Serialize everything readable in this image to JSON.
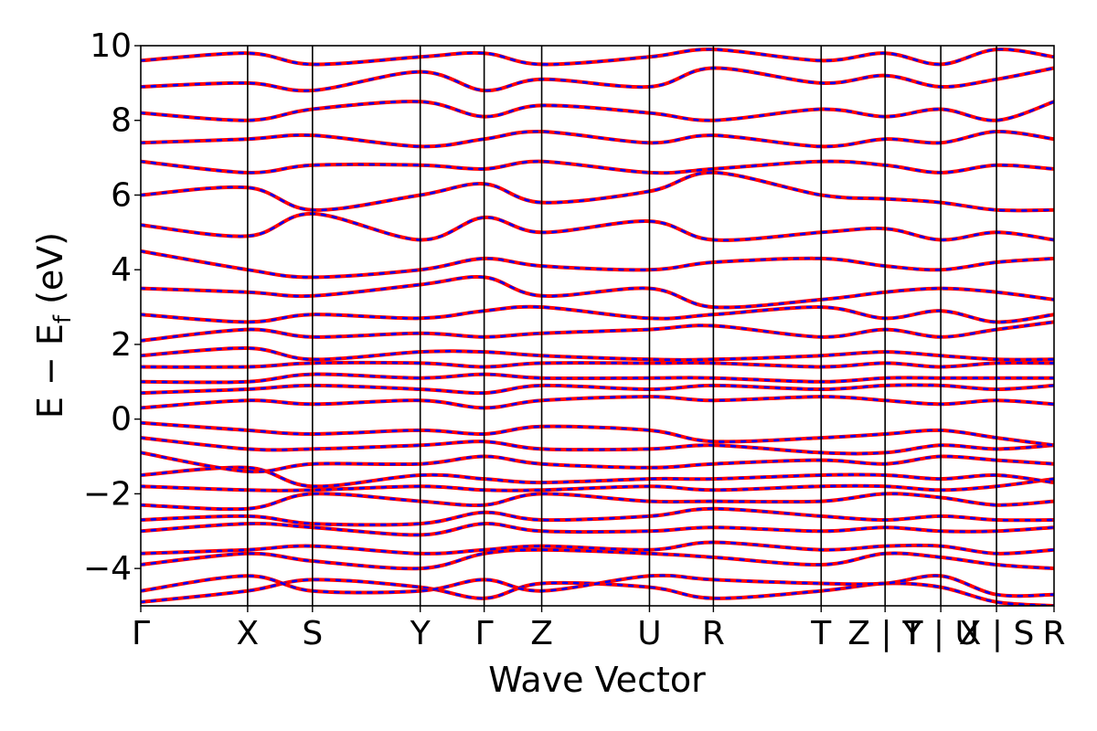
{
  "chart_data": {
    "type": "line",
    "title": "",
    "xlabel": "Wave Vector",
    "ylabel": "E − E",
    "ylabel_subscript": "f",
    "ylabel_unit": "(eV)",
    "ylim": [
      -5,
      10
    ],
    "yticks": [
      10,
      8,
      6,
      4,
      2,
      0,
      -2,
      -4
    ],
    "ytick_labels": [
      "10",
      "8",
      "6",
      "4",
      "2",
      "0",
      "−2",
      "−4"
    ],
    "grid": false,
    "xlim": [
      0,
      1
    ],
    "kpoints": [
      {
        "label": "Γ",
        "x": 0.0
      },
      {
        "label": "X",
        "x": 0.117
      },
      {
        "label": "S",
        "x": 0.188
      },
      {
        "label": "Y",
        "x": 0.306
      },
      {
        "label": "Γ",
        "x": 0.376
      },
      {
        "label": "Z",
        "x": 0.439
      },
      {
        "label": "U",
        "x": 0.557
      },
      {
        "label": "R",
        "x": 0.627
      },
      {
        "label": "T",
        "x": 0.745
      },
      {
        "label": "Z | Y",
        "x": 0.815
      },
      {
        "label": "T | U",
        "x": 0.876
      },
      {
        "label": "X | S",
        "x": 0.937
      },
      {
        "label": "R",
        "x": 1.0
      }
    ],
    "series": [
      {
        "color": "#ff0000",
        "style": "solid"
      },
      {
        "color": "#0000ff",
        "style": "dashed"
      }
    ],
    "bands": [
      [
        -4.9,
        -4.6,
        -4.3,
        -4.5,
        -4.8,
        -4.4,
        -4.5,
        -4.8,
        -4.6,
        -4.4,
        -4.5,
        -4.9,
        -5.0
      ],
      [
        -4.6,
        -4.2,
        -4.6,
        -4.6,
        -4.3,
        -4.6,
        -4.2,
        -4.3,
        -4.4,
        -4.4,
        -4.2,
        -4.7,
        -4.7
      ],
      [
        -3.9,
        -3.6,
        -3.8,
        -4.0,
        -3.6,
        -3.5,
        -3.6,
        -3.7,
        -3.9,
        -3.6,
        -3.7,
        -3.9,
        -4.0
      ],
      [
        -3.6,
        -3.5,
        -3.4,
        -3.6,
        -3.5,
        -3.4,
        -3.5,
        -3.3,
        -3.5,
        -3.4,
        -3.4,
        -3.6,
        -3.5
      ],
      [
        -3.0,
        -2.8,
        -2.9,
        -3.1,
        -2.8,
        -3.0,
        -3.0,
        -2.9,
        -3.0,
        -2.9,
        -3.0,
        -3.0,
        -2.9
      ],
      [
        -2.7,
        -2.6,
        -2.8,
        -2.8,
        -2.5,
        -2.7,
        -2.6,
        -2.4,
        -2.6,
        -2.7,
        -2.6,
        -2.7,
        -2.7
      ],
      [
        -2.3,
        -2.4,
        -2.0,
        -2.2,
        -2.3,
        -2.0,
        -2.2,
        -2.2,
        -2.2,
        -2.0,
        -2.1,
        -2.3,
        -2.2
      ],
      [
        -1.8,
        -1.9,
        -1.9,
        -1.8,
        -1.9,
        -1.9,
        -1.8,
        -1.9,
        -1.8,
        -1.8,
        -1.9,
        -1.8,
        -1.6
      ],
      [
        -1.5,
        -1.3,
        -1.8,
        -1.5,
        -1.6,
        -1.7,
        -1.6,
        -1.6,
        -1.5,
        -1.5,
        -1.6,
        -1.5,
        -1.7
      ],
      [
        -0.9,
        -1.4,
        -1.2,
        -1.2,
        -1.0,
        -1.2,
        -1.3,
        -1.2,
        -1.1,
        -1.2,
        -1.0,
        -1.1,
        -1.2
      ],
      [
        -0.5,
        -0.8,
        -0.8,
        -0.7,
        -0.6,
        -0.8,
        -0.8,
        -0.7,
        -0.9,
        -0.9,
        -0.7,
        -0.8,
        -0.7
      ],
      [
        -0.1,
        -0.3,
        -0.4,
        -0.3,
        -0.4,
        -0.2,
        -0.3,
        -0.6,
        -0.5,
        -0.4,
        -0.3,
        -0.5,
        -0.7
      ],
      [
        0.3,
        0.5,
        0.4,
        0.5,
        0.3,
        0.5,
        0.6,
        0.5,
        0.6,
        0.5,
        0.4,
        0.5,
        0.4
      ],
      [
        0.7,
        0.8,
        0.9,
        0.8,
        0.7,
        0.9,
        0.8,
        0.9,
        0.8,
        0.9,
        0.9,
        0.8,
        0.9
      ],
      [
        1.0,
        1.0,
        1.2,
        1.1,
        1.2,
        1.1,
        1.1,
        1.1,
        1.0,
        1.1,
        1.1,
        1.1,
        1.1
      ],
      [
        1.4,
        1.4,
        1.5,
        1.5,
        1.4,
        1.5,
        1.5,
        1.5,
        1.4,
        1.5,
        1.4,
        1.5,
        1.5
      ],
      [
        1.7,
        1.9,
        1.6,
        1.8,
        1.8,
        1.7,
        1.6,
        1.6,
        1.7,
        1.8,
        1.7,
        1.6,
        1.6
      ],
      [
        2.1,
        2.4,
        2.2,
        2.3,
        2.2,
        2.3,
        2.4,
        2.5,
        2.2,
        2.4,
        2.2,
        2.4,
        2.6
      ],
      [
        2.8,
        2.6,
        2.8,
        2.7,
        2.9,
        3.0,
        2.7,
        2.8,
        3.0,
        2.7,
        2.9,
        2.6,
        2.8
      ],
      [
        3.5,
        3.4,
        3.3,
        3.6,
        3.8,
        3.3,
        3.5,
        3.0,
        3.2,
        3.4,
        3.5,
        3.4,
        3.2
      ],
      [
        4.5,
        4.0,
        3.8,
        4.0,
        4.3,
        4.1,
        4.0,
        4.2,
        4.3,
        4.1,
        4.0,
        4.2,
        4.3
      ],
      [
        5.2,
        4.9,
        5.5,
        4.8,
        5.4,
        5.0,
        5.3,
        4.8,
        5.0,
        5.1,
        4.8,
        5.0,
        4.8
      ],
      [
        6.0,
        6.2,
        5.6,
        6.0,
        6.3,
        5.8,
        6.1,
        6.6,
        6.0,
        5.9,
        5.8,
        5.6,
        5.6
      ],
      [
        6.9,
        6.6,
        6.8,
        6.8,
        6.7,
        6.9,
        6.6,
        6.7,
        6.9,
        6.8,
        6.6,
        6.8,
        6.7
      ],
      [
        7.4,
        7.5,
        7.6,
        7.3,
        7.5,
        7.7,
        7.4,
        7.6,
        7.3,
        7.5,
        7.4,
        7.7,
        7.5
      ],
      [
        8.2,
        8.0,
        8.3,
        8.5,
        8.1,
        8.4,
        8.2,
        8.0,
        8.3,
        8.1,
        8.3,
        8.0,
        8.5
      ],
      [
        8.9,
        9.0,
        8.8,
        9.3,
        8.8,
        9.1,
        8.9,
        9.4,
        9.0,
        9.2,
        8.9,
        9.1,
        9.4
      ],
      [
        9.6,
        9.8,
        9.5,
        9.7,
        9.8,
        9.5,
        9.7,
        9.9,
        9.6,
        9.8,
        9.5,
        9.9,
        9.7
      ]
    ]
  }
}
